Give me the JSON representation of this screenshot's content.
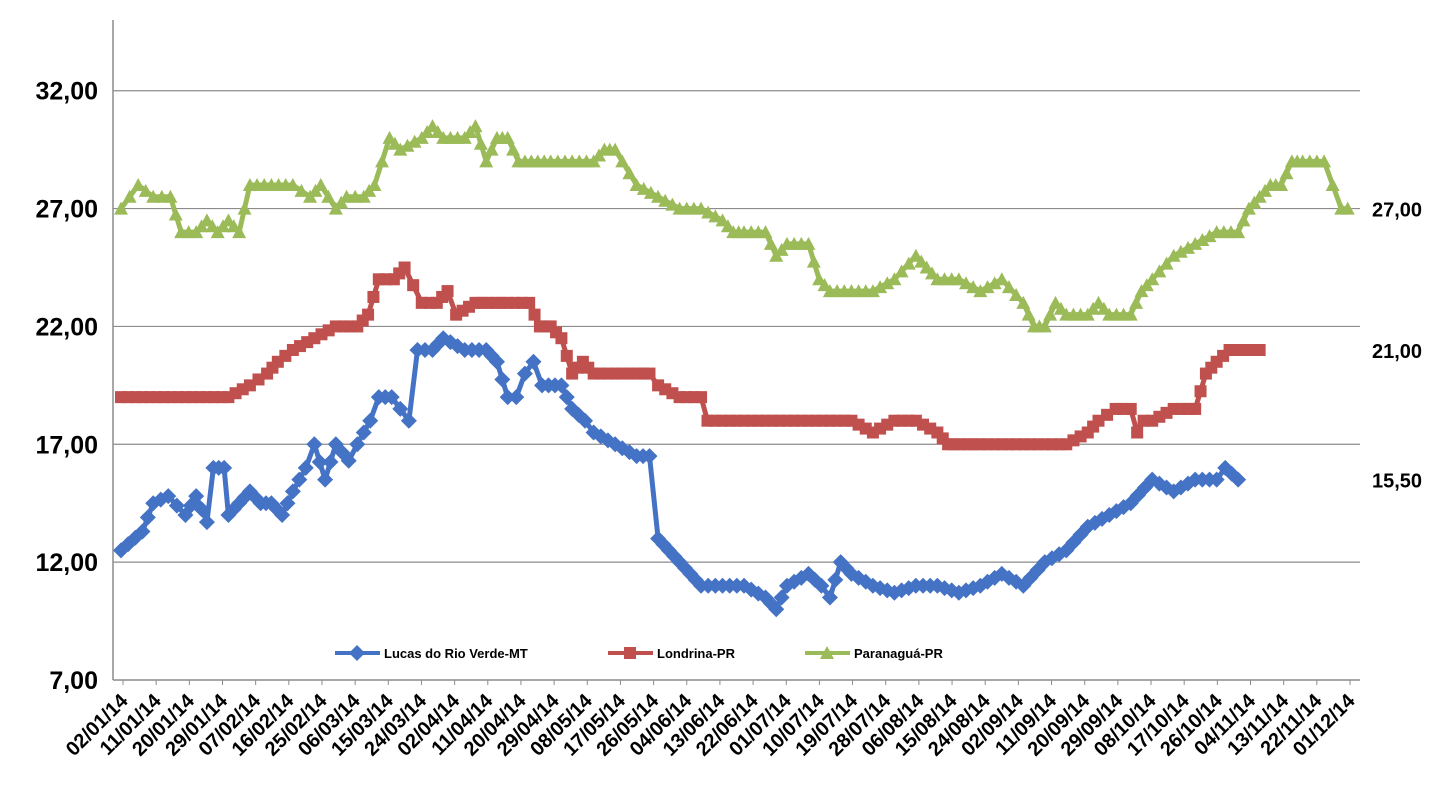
{
  "chart_data": {
    "type": "line",
    "title": "",
    "xlabel": "",
    "ylabel": "",
    "ylim": [
      7,
      35
    ],
    "y_ticks": [
      "7,00",
      "12,00",
      "17,00",
      "22,00",
      "27,00",
      "32,00"
    ],
    "y_tick_values": [
      7,
      12,
      17,
      22,
      27,
      32
    ],
    "grid": "horizontal",
    "legend_position": "bottom-center",
    "x_tick_labels": [
      "02/01/14",
      "11/01/14",
      "20/01/14",
      "29/01/14",
      "07/02/14",
      "16/02/14",
      "25/02/14",
      "06/03/14",
      "15/03/14",
      "24/03/14",
      "02/04/14",
      "11/04/14",
      "20/04/14",
      "29/04/14",
      "08/05/14",
      "17/05/14",
      "26/05/14",
      "04/06/14",
      "13/06/14",
      "22/06/14",
      "01/07/14",
      "10/07/14",
      "19/07/14",
      "28/07/14",
      "06/08/14",
      "15/08/14",
      "24/08/14",
      "02/09/14",
      "11/09/14",
      "20/09/14",
      "29/09/14",
      "08/10/14",
      "17/10/14",
      "26/10/14",
      "04/11/14",
      "13/11/14",
      "22/11/14",
      "01/12/14"
    ],
    "series": [
      {
        "name": "Lucas do Rio Verde-MT",
        "color": "#4472c4",
        "marker": "diamond",
        "end_label": "15,50",
        "points": [
          [
            0,
            12.5
          ],
          [
            1,
            13.3
          ],
          [
            1.5,
            14.5
          ],
          [
            2.2,
            14.8
          ],
          [
            3,
            14.0
          ],
          [
            3.5,
            14.8
          ],
          [
            4,
            13.7
          ],
          [
            4.3,
            16.0
          ],
          [
            4.8,
            16.0
          ],
          [
            5,
            14.0
          ],
          [
            5.5,
            14.5
          ],
          [
            6,
            15.0
          ],
          [
            6.5,
            14.5
          ],
          [
            7,
            14.5
          ],
          [
            7.5,
            14.0
          ],
          [
            8,
            15.0
          ],
          [
            8.6,
            16.0
          ],
          [
            9,
            17.0
          ],
          [
            9.5,
            15.5
          ],
          [
            10,
            17.0
          ],
          [
            10.6,
            16.3
          ],
          [
            11,
            17.0
          ],
          [
            11.6,
            18.0
          ],
          [
            12,
            19.0
          ],
          [
            12.6,
            19.0
          ],
          [
            13,
            18.5
          ],
          [
            13.4,
            18.0
          ],
          [
            13.8,
            21.0
          ],
          [
            14.5,
            21.0
          ],
          [
            15,
            21.5
          ],
          [
            16,
            21.0
          ],
          [
            17,
            21.0
          ],
          [
            17.5,
            20.5
          ],
          [
            18,
            19.0
          ],
          [
            18.4,
            19.0
          ],
          [
            18.8,
            20.0
          ],
          [
            19.2,
            20.5
          ],
          [
            19.6,
            19.5
          ],
          [
            20.5,
            19.5
          ],
          [
            21,
            18.5
          ],
          [
            21.6,
            18.0
          ],
          [
            22,
            17.5
          ],
          [
            23,
            17.0
          ],
          [
            24,
            16.5
          ],
          [
            24.6,
            16.5
          ],
          [
            25,
            13.0
          ],
          [
            25.5,
            12.5
          ],
          [
            26,
            12.0
          ],
          [
            26.5,
            11.5
          ],
          [
            27,
            11.0
          ],
          [
            28,
            11.0
          ],
          [
            29,
            11.0
          ],
          [
            30,
            10.5
          ],
          [
            30.5,
            10.0
          ],
          [
            31,
            11.0
          ],
          [
            32,
            11.5
          ],
          [
            32.6,
            11.0
          ],
          [
            33,
            10.5
          ],
          [
            33.5,
            12.0
          ],
          [
            34,
            11.5
          ],
          [
            35,
            11.0
          ],
          [
            36,
            10.7
          ],
          [
            37,
            11.0
          ],
          [
            38,
            11.0
          ],
          [
            39,
            10.7
          ],
          [
            40,
            11.0
          ],
          [
            41,
            11.5
          ],
          [
            42,
            11.0
          ],
          [
            43,
            12.0
          ],
          [
            44,
            12.5
          ],
          [
            45,
            13.5
          ],
          [
            46,
            14.0
          ],
          [
            47,
            14.5
          ],
          [
            48,
            15.5
          ],
          [
            49,
            15.0
          ],
          [
            50,
            15.5
          ],
          [
            51,
            15.5
          ],
          [
            51.4,
            16.0
          ],
          [
            52,
            15.5
          ]
        ]
      },
      {
        "name": "Londrina-PR",
        "color": "#c0504d",
        "marker": "square",
        "end_label": "21,00",
        "points": [
          [
            0,
            19.0
          ],
          [
            4,
            19.0
          ],
          [
            5,
            19.0
          ],
          [
            6,
            19.5
          ],
          [
            6.8,
            20.0
          ],
          [
            7.3,
            20.5
          ],
          [
            8,
            21.0
          ],
          [
            9,
            21.5
          ],
          [
            10,
            22.0
          ],
          [
            11,
            22.0
          ],
          [
            11.5,
            22.5
          ],
          [
            12,
            24.0
          ],
          [
            12.7,
            24.0
          ],
          [
            13.2,
            24.5
          ],
          [
            14,
            23.0
          ],
          [
            14.7,
            23.0
          ],
          [
            15.2,
            23.5
          ],
          [
            15.6,
            22.5
          ],
          [
            16.5,
            23.0
          ],
          [
            18,
            23.0
          ],
          [
            19,
            23.0
          ],
          [
            19.5,
            22.0
          ],
          [
            20,
            22.0
          ],
          [
            20.5,
            21.5
          ],
          [
            21,
            20.0
          ],
          [
            21.5,
            20.5
          ],
          [
            22,
            20.0
          ],
          [
            23,
            20.0
          ],
          [
            24,
            20.0
          ],
          [
            24.6,
            20.0
          ],
          [
            25,
            19.5
          ],
          [
            26,
            19.0
          ],
          [
            27,
            19.0
          ],
          [
            27.3,
            18.0
          ],
          [
            28,
            18.0
          ],
          [
            30,
            18.0
          ],
          [
            32,
            18.0
          ],
          [
            33,
            18.0
          ],
          [
            34,
            18.0
          ],
          [
            35,
            17.5
          ],
          [
            36,
            18.0
          ],
          [
            37,
            18.0
          ],
          [
            38,
            17.5
          ],
          [
            38.5,
            17.0
          ],
          [
            40,
            17.0
          ],
          [
            42,
            17.0
          ],
          [
            43,
            17.0
          ],
          [
            44,
            17.0
          ],
          [
            45,
            17.5
          ],
          [
            45.5,
            18.0
          ],
          [
            46.3,
            18.5
          ],
          [
            47,
            18.5
          ],
          [
            47.3,
            17.5
          ],
          [
            47.6,
            18.0
          ],
          [
            48,
            18.0
          ],
          [
            49,
            18.5
          ],
          [
            50,
            18.5
          ],
          [
            50.5,
            20.0
          ],
          [
            51,
            20.5
          ],
          [
            51.6,
            21.0
          ],
          [
            53,
            21.0
          ]
        ]
      },
      {
        "name": "Paranaguá-PR",
        "color": "#9bbb59",
        "marker": "triangle",
        "end_label": "27,00",
        "points": [
          [
            0,
            27.0
          ],
          [
            0.8,
            28.0
          ],
          [
            1.5,
            27.5
          ],
          [
            2.3,
            27.5
          ],
          [
            2.8,
            26.0
          ],
          [
            3.5,
            26.0
          ],
          [
            4,
            26.5
          ],
          [
            4.5,
            26.0
          ],
          [
            5,
            26.5
          ],
          [
            5.5,
            26.0
          ],
          [
            6,
            28.0
          ],
          [
            7,
            28.0
          ],
          [
            8,
            28.0
          ],
          [
            8.8,
            27.5
          ],
          [
            9.3,
            28.0
          ],
          [
            10,
            27.0
          ],
          [
            10.5,
            27.5
          ],
          [
            11.3,
            27.5
          ],
          [
            11.8,
            28.0
          ],
          [
            12.5,
            30.0
          ],
          [
            13,
            29.5
          ],
          [
            14,
            30.0
          ],
          [
            14.5,
            30.5
          ],
          [
            15,
            30.0
          ],
          [
            16,
            30.0
          ],
          [
            16.5,
            30.5
          ],
          [
            17,
            29.0
          ],
          [
            17.5,
            30.0
          ],
          [
            18,
            30.0
          ],
          [
            18.5,
            29.0
          ],
          [
            20,
            29.0
          ],
          [
            21,
            29.0
          ],
          [
            22,
            29.0
          ],
          [
            22.5,
            29.5
          ],
          [
            23,
            29.5
          ],
          [
            24,
            28.0
          ],
          [
            25,
            27.5
          ],
          [
            26,
            27.0
          ],
          [
            27,
            27.0
          ],
          [
            28,
            26.5
          ],
          [
            28.5,
            26.0
          ],
          [
            29,
            26.0
          ],
          [
            30,
            26.0
          ],
          [
            30.5,
            25.0
          ],
          [
            31,
            25.5
          ],
          [
            32,
            25.5
          ],
          [
            32.5,
            24.0
          ],
          [
            33,
            23.5
          ],
          [
            34,
            23.5
          ],
          [
            35,
            23.5
          ],
          [
            36,
            24.0
          ],
          [
            37,
            25.0
          ],
          [
            37.5,
            24.5
          ],
          [
            38,
            24.0
          ],
          [
            39,
            24.0
          ],
          [
            40,
            23.5
          ],
          [
            41,
            24.0
          ],
          [
            42,
            23.0
          ],
          [
            42.5,
            22.0
          ],
          [
            43,
            22.0
          ],
          [
            43.5,
            23.0
          ],
          [
            44,
            22.5
          ],
          [
            45,
            22.5
          ],
          [
            45.5,
            23.0
          ],
          [
            46,
            22.5
          ],
          [
            47,
            22.5
          ],
          [
            47.5,
            23.5
          ],
          [
            48,
            24.0
          ],
          [
            49,
            25.0
          ],
          [
            50,
            25.5
          ],
          [
            51,
            26.0
          ],
          [
            52,
            26.0
          ],
          [
            52.5,
            27.0
          ],
          [
            53,
            27.5
          ],
          [
            53.5,
            28.0
          ],
          [
            54,
            28.0
          ],
          [
            54.5,
            29.0
          ],
          [
            55,
            29.0
          ],
          [
            56,
            29.0
          ],
          [
            56.4,
            28.0
          ],
          [
            56.8,
            27.0
          ],
          [
            57.1,
            27.0
          ]
        ]
      }
    ],
    "x_index_max": 57.3
  }
}
